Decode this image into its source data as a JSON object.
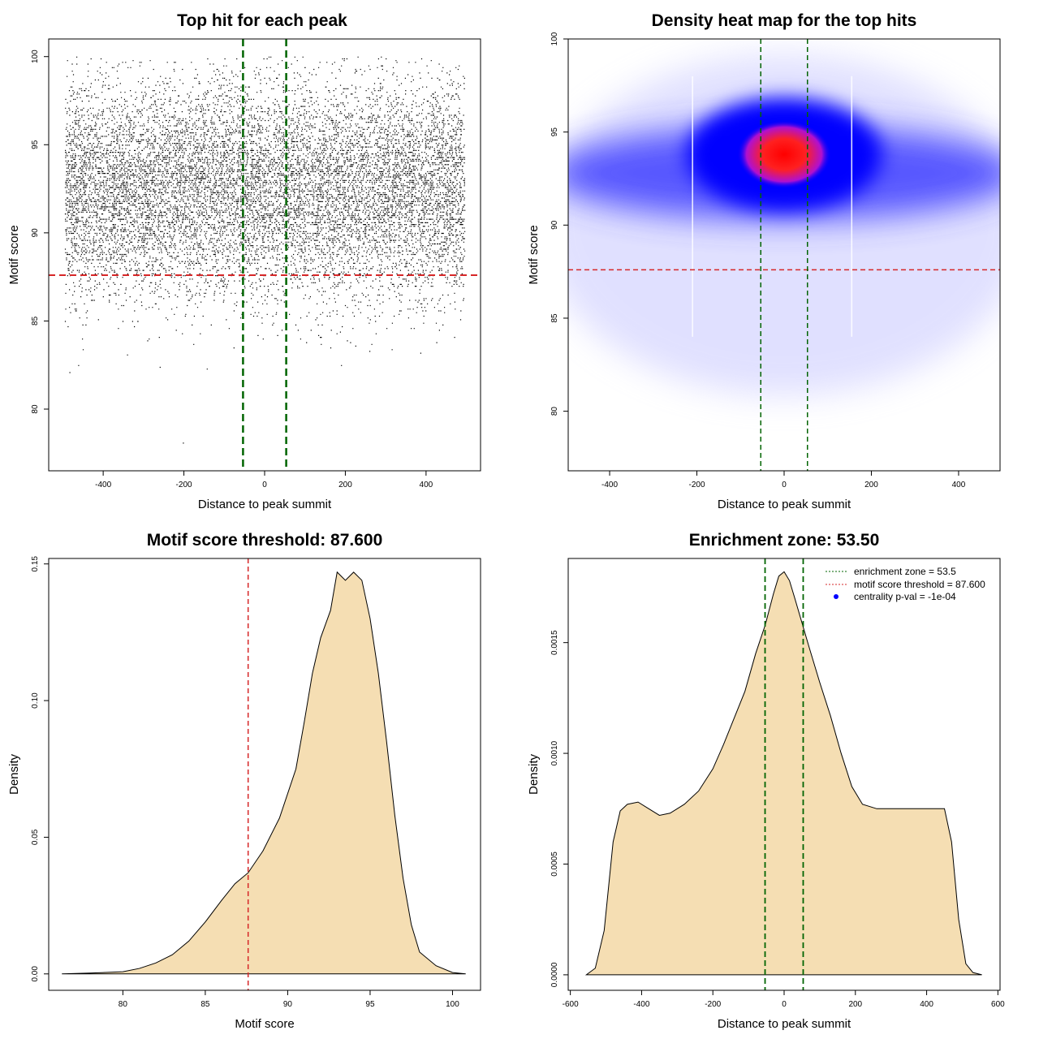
{
  "chart_data": [
    {
      "type": "scatter",
      "title": "Top hit for each peak",
      "xlabel": "Distance to peak summit",
      "ylabel": "Motif score",
      "xlim": [
        -535,
        535
      ],
      "ylim": [
        76.5,
        101
      ],
      "x_ticks": [
        -400,
        -200,
        0,
        200,
        400
      ],
      "y_ticks": [
        80,
        85,
        90,
        95,
        100
      ],
      "point_count_shown": "dense",
      "x_range_of_points": [
        -495,
        495
      ],
      "score_mean": 92.5,
      "score_sd": 3.0,
      "threshold_line": 87.6,
      "enrichment_lines": [
        -53.5,
        53.5
      ],
      "colors": {
        "points": "#000000",
        "threshold": "#d62728",
        "enrichment": "#006400"
      }
    },
    {
      "type": "heatmap",
      "title": "Density heat map for the top hits",
      "xlabel": "Distance to peak summit",
      "ylabel": "Motif score",
      "xlim": [
        -495,
        495
      ],
      "ylim": [
        76.8,
        100
      ],
      "x_ticks": [
        -400,
        -200,
        0,
        200,
        400
      ],
      "y_ticks": [
        80,
        85,
        90,
        95,
        100
      ],
      "peak_center": [
        0,
        93.8
      ],
      "threshold_line": 87.6,
      "enrichment_lines": [
        -53.5,
        53.5
      ],
      "colors": {
        "low": "#ffffff",
        "mid": "#0000ff",
        "high": "#ff0000",
        "threshold": "#d62728",
        "enrichment": "#006400"
      }
    },
    {
      "type": "area",
      "title": "Motif score threshold: 87.600",
      "xlabel": "Motif score",
      "ylabel": "Density",
      "xlim": [
        75.5,
        101.7
      ],
      "ylim": [
        -0.006,
        0.152
      ],
      "x_ticks": [
        80,
        85,
        90,
        95,
        100
      ],
      "y_ticks": [
        0.0,
        0.05,
        0.1,
        0.15
      ],
      "y_tick_labels": [
        "0.00",
        "0.05",
        "0.10",
        "0.15"
      ],
      "x": [
        76.3,
        78,
        80,
        81,
        82,
        83,
        84,
        85,
        86,
        86.8,
        87.6,
        88.5,
        89.5,
        90.5,
        91,
        91.5,
        92,
        92.6,
        93,
        93.5,
        94,
        94.5,
        95,
        95.5,
        96,
        96.5,
        97,
        97.5,
        98,
        99,
        100,
        100.8
      ],
      "y": [
        0.0,
        0.0003,
        0.0008,
        0.002,
        0.004,
        0.007,
        0.012,
        0.019,
        0.027,
        0.033,
        0.037,
        0.045,
        0.057,
        0.075,
        0.092,
        0.11,
        0.123,
        0.133,
        0.147,
        0.144,
        0.147,
        0.144,
        0.13,
        0.11,
        0.085,
        0.058,
        0.035,
        0.018,
        0.008,
        0.003,
        0.0005,
        0.0
      ],
      "threshold_line": 87.6,
      "colors": {
        "fill": "#f5deb3",
        "stroke": "#000000",
        "threshold": "#d62728"
      }
    },
    {
      "type": "area",
      "title": "Enrichment zone: 53.50",
      "xlabel": "Distance to peak summit",
      "ylabel": "Density",
      "xlim": [
        -606,
        606
      ],
      "ylim": [
        -7e-05,
        0.00188
      ],
      "x_ticks": [
        -600,
        -400,
        -200,
        0,
        200,
        400,
        600
      ],
      "y_ticks": [
        0.0,
        0.0005,
        0.001,
        0.0015
      ],
      "y_tick_labels": [
        "0.0000",
        "0.0005",
        "0.0010",
        "0.0015"
      ],
      "x": [
        -555,
        -530,
        -505,
        -480,
        -460,
        -440,
        -410,
        -380,
        -350,
        -320,
        -280,
        -240,
        -200,
        -170,
        -140,
        -110,
        -80,
        -53,
        -30,
        -15,
        0,
        15,
        30,
        50,
        70,
        100,
        130,
        160,
        190,
        220,
        260,
        300,
        340,
        380,
        420,
        450,
        470,
        490,
        510,
        530,
        555
      ],
      "y": [
        0.0,
        3e-05,
        0.0002,
        0.0006,
        0.00074,
        0.00077,
        0.00078,
        0.00075,
        0.00072,
        0.00073,
        0.00077,
        0.00083,
        0.00093,
        0.00104,
        0.00116,
        0.00128,
        0.00145,
        0.00158,
        0.00172,
        0.0018,
        0.00182,
        0.00178,
        0.0017,
        0.00159,
        0.00148,
        0.00132,
        0.00117,
        0.001,
        0.00085,
        0.00077,
        0.00075,
        0.00075,
        0.00075,
        0.00075,
        0.00075,
        0.00075,
        0.0006,
        0.00025,
        5e-05,
        1e-05,
        0.0
      ],
      "enrichment_lines": [
        -53.5,
        53.5
      ],
      "legend": [
        {
          "label": "enrichment zone = 53.5",
          "style": "dotted-line",
          "color": "#006400"
        },
        {
          "label": "motif score threshold = 87.600",
          "style": "dotted-line",
          "color": "#d62728"
        },
        {
          "label": "centrality p-val = -1e-04",
          "style": "dot",
          "color": "#0000ff"
        }
      ],
      "legend_position": "top-right",
      "colors": {
        "fill": "#f5deb3",
        "stroke": "#000000",
        "enrichment": "#006400"
      }
    }
  ]
}
